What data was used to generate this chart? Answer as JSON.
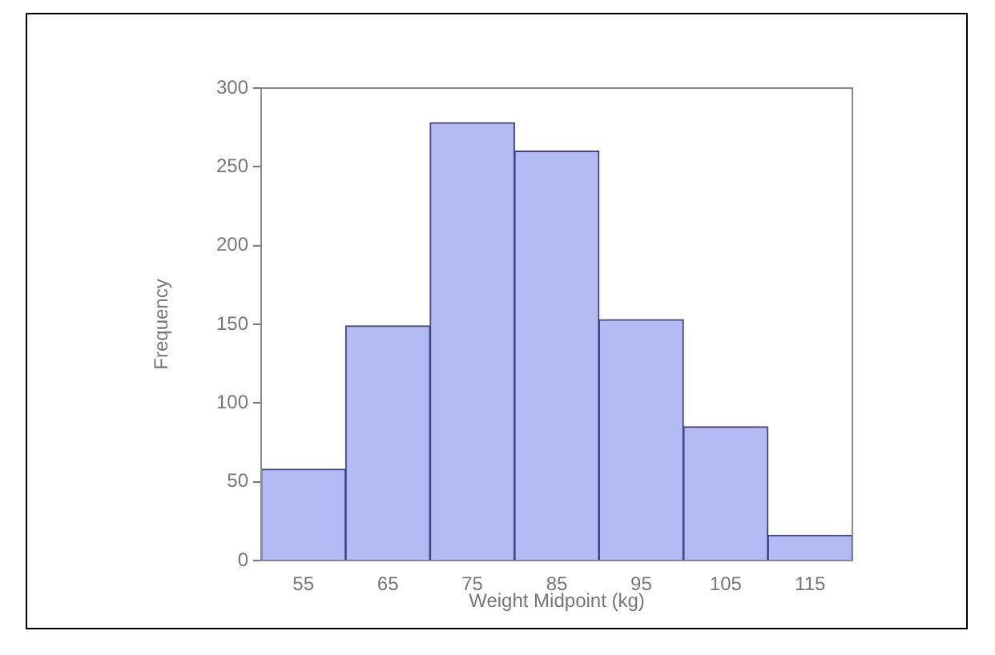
{
  "chart_data": {
    "type": "histogram",
    "xlabel": "Weight Midpoint (kg)",
    "ylabel": "Frequency",
    "bins": [
      50,
      60,
      70,
      80,
      90,
      100,
      110,
      120
    ],
    "values": [
      58,
      149,
      278,
      260,
      153,
      85,
      16
    ],
    "color": "#b4baf2",
    "xlim": [
      50,
      120
    ],
    "xticks": [
      55,
      65,
      75,
      85,
      95,
      105,
      115
    ],
    "ylim": [
      0,
      300
    ],
    "yticks": [
      0,
      50,
      100,
      150,
      200,
      250,
      300
    ],
    "grid": false,
    "legend": false
  }
}
